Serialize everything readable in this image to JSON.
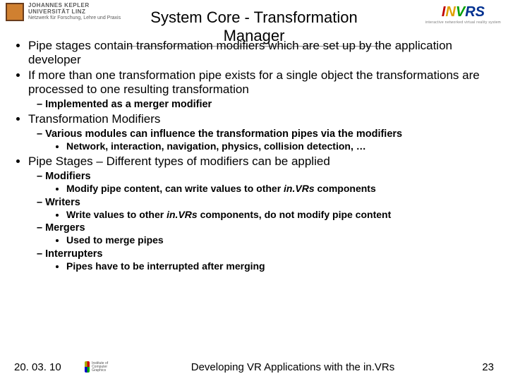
{
  "header": {
    "title": "System Core - Transformation Manager",
    "left_logo": {
      "line1": "JOHANNES KEPLER",
      "line2": "UNIVERSITÄT LINZ",
      "line3": "Netzwerk für Forschung, Lehre und Praxis"
    },
    "right_logo": {
      "brand_i": "I",
      "brand_n": "N",
      "brand_v": "V",
      "brand_rs": "RS",
      "tagline": "interactive networked virtual reality system"
    }
  },
  "bullets": {
    "b1": "Pipe stages contain transformation modifiers which are set up by the application developer",
    "b2": "If more than one transformation pipe exists for a single object the transformations are processed to one resulting transformation",
    "b2_1": "Implemented as a merger modifier",
    "b3": "Transformation Modifiers",
    "b3_1": "Various modules can influence the transformation pipes via the modifiers",
    "b3_1_1": "Network, interaction, navigation, physics, collision detection, …",
    "b4": "Pipe Stages – Different types of modifiers can be applied",
    "b4_1": "Modifiers",
    "b4_1_1a": "Modify pipe content, can write values to other ",
    "b4_1_1b": "in.VRs",
    "b4_1_1c": " components",
    "b4_2": "Writers",
    "b4_2_1a": "Write values to other ",
    "b4_2_1b": "in.VRs",
    "b4_2_1c": " components, do not modify pipe content",
    "b4_3": "Mergers",
    "b4_3_1": "Used to merge pipes",
    "b4_4": "Interrupters",
    "b4_4_1": "Pipes have to be interrupted after merging"
  },
  "footer": {
    "date": "20. 03. 10",
    "center": "Developing VR Applications with the in.VRs",
    "logo_text": "Institute of\nComputer Graphics",
    "page": "23"
  },
  "style": {
    "background_color": "#ffffff",
    "text_color": "#000000",
    "title_fontsize": 22,
    "body_fontsize": 17,
    "sub_fontsize": 14.5,
    "subsub_fontsize": 14
  }
}
